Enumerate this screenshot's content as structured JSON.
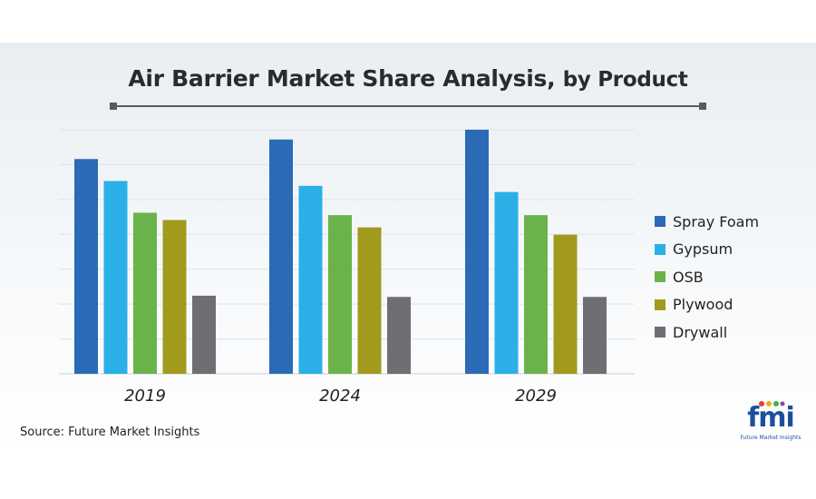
{
  "title": {
    "main": "Air Barrier Market Share Analysis,",
    "sub": "by Product"
  },
  "source": "Source: Future Market Insights",
  "logo": {
    "text": "fmi",
    "caption": "Future Market Insights"
  },
  "chart_data": {
    "type": "bar",
    "title": "Air Barrier Market Share Analysis, by Product",
    "xlabel": "",
    "ylabel": "",
    "categories": [
      "2019",
      "2024",
      "2029"
    ],
    "ylim": [
      0,
      100
    ],
    "grid": true,
    "legend_position": "right",
    "series": [
      {
        "name": "Spray Foam",
        "color": "#2a6ab6",
        "values": [
          88,
          96,
          100
        ]
      },
      {
        "name": "Gypsum",
        "color": "#2ab0e6",
        "values": [
          79,
          77,
          74.5
        ]
      },
      {
        "name": "OSB",
        "color": "#6ab34a",
        "values": [
          66,
          65,
          65
        ]
      },
      {
        "name": "Plywood",
        "color": "#a29a1d",
        "values": [
          63,
          60,
          57
        ]
      },
      {
        "name": "Drywall",
        "color": "#6f6f73",
        "values": [
          32,
          31.5,
          31.5
        ]
      }
    ]
  }
}
